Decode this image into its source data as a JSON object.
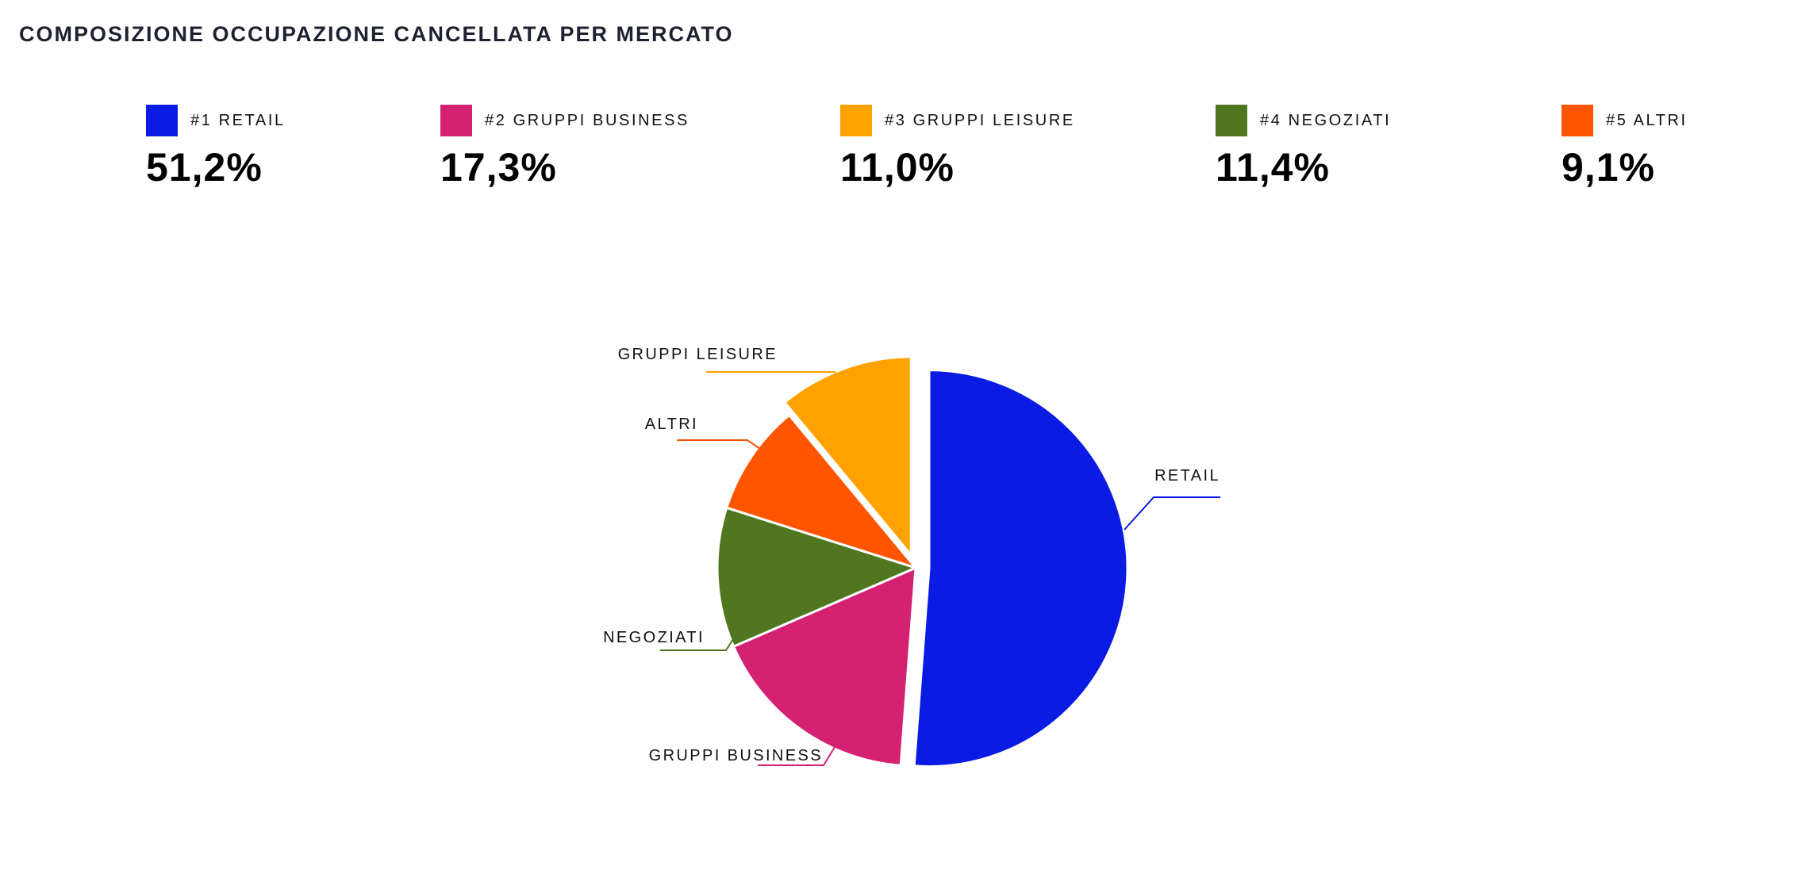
{
  "title": "COMPOSIZIONE OCCUPAZIONE CANCELLATA PER MERCATO",
  "legend": [
    {
      "label": "#1 RETAIL",
      "value": "51,2%",
      "color": "#0a1be4"
    },
    {
      "label": "#2 GRUPPI BUSINESS",
      "value": "17,3%",
      "color": "#d42172"
    },
    {
      "label": "#3 GRUPPI LEISURE",
      "value": "11,0%",
      "color": "#ffa200"
    },
    {
      "label": "#4 NEGOZIATI",
      "value": "11,4%",
      "color": "#517620"
    },
    {
      "label": "#5 ALTRI",
      "value": "9,1%",
      "color": "#ff5500"
    }
  ],
  "chart_data": {
    "type": "pie",
    "title": "COMPOSIZIONE OCCUPAZIONE CANCELLATA PER MERCATO",
    "slices": [
      {
        "name": "RETAIL",
        "value": 51.2,
        "color": "#0a1be4"
      },
      {
        "name": "GRUPPI BUSINESS",
        "value": 17.3,
        "color": "#d42172"
      },
      {
        "name": "NEGOZIATI",
        "value": 11.4,
        "color": "#517620"
      },
      {
        "name": "ALTRI",
        "value": 9.1,
        "color": "#ff5500"
      },
      {
        "name": "GRUPPI LEISURE",
        "value": 11.0,
        "color": "#ffa200"
      }
    ],
    "exploded": [
      "RETAIL",
      "GRUPPI LEISURE"
    ],
    "start_angle": "top",
    "direction": "clockwise"
  }
}
